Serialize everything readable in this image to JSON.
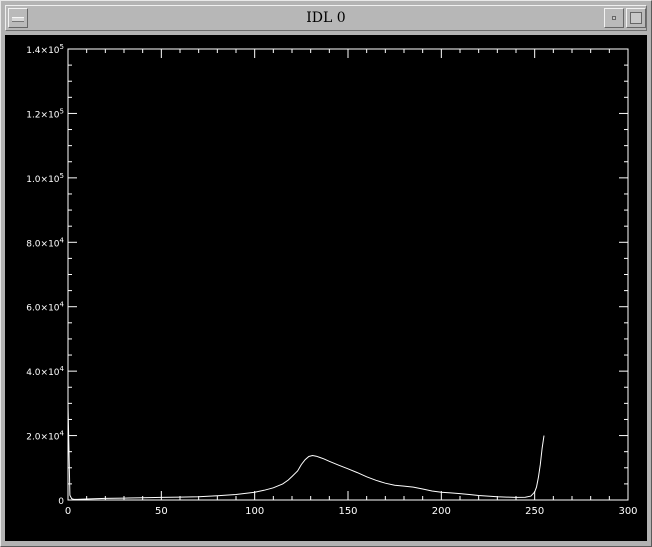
{
  "window": {
    "title": "IDL 0"
  },
  "icons": {
    "menu": "window-menu-icon",
    "minimize": "minimize-icon",
    "maximize": "maximize-icon"
  },
  "colors": {
    "plot_bg": "#000000",
    "ink": "#ffffff"
  },
  "chart_data": {
    "type": "line",
    "title": "",
    "xlabel": "",
    "ylabel": "",
    "xlim": [
      0,
      300
    ],
    "ylim": [
      0,
      140000
    ],
    "grid": false,
    "xticks": [
      0,
      50,
      100,
      150,
      200,
      250,
      300
    ],
    "xtick_labels": [
      "0",
      "50",
      "100",
      "150",
      "200",
      "250",
      "300"
    ],
    "yticks": [
      0,
      20000,
      40000,
      60000,
      80000,
      100000,
      120000,
      140000
    ],
    "ytick_labels": [
      {
        "mant": "0",
        "exp": ""
      },
      {
        "mant": "2.0×10",
        "exp": "4"
      },
      {
        "mant": "4.0×10",
        "exp": "4"
      },
      {
        "mant": "6.0×10",
        "exp": "4"
      },
      {
        "mant": "8.0×10",
        "exp": "4"
      },
      {
        "mant": "1.0×10",
        "exp": "5"
      },
      {
        "mant": "1.2×10",
        "exp": "5"
      },
      {
        "mant": "1.4×10",
        "exp": "5"
      }
    ],
    "series": [
      {
        "x": [
          0,
          1,
          2,
          3,
          5,
          10,
          20,
          30,
          40,
          50,
          60,
          70,
          80,
          90,
          100,
          105,
          110,
          115,
          118,
          120,
          123,
          125,
          127,
          129,
          131,
          133,
          135,
          137,
          140,
          145,
          150,
          155,
          160,
          165,
          170,
          175,
          180,
          185,
          190,
          195,
          200,
          205,
          210,
          215,
          220,
          225,
          230,
          235,
          240,
          245,
          248,
          250,
          251,
          252,
          253,
          254,
          255
        ],
        "y": [
          30000,
          1500,
          400,
          250,
          200,
          300,
          500,
          600,
          700,
          800,
          900,
          1000,
          1300,
          1700,
          2400,
          3000,
          3800,
          5000,
          6200,
          7300,
          9000,
          11000,
          12500,
          13500,
          13800,
          13600,
          13200,
          12800,
          12000,
          10800,
          9700,
          8500,
          7200,
          6100,
          5200,
          4600,
          4300,
          4000,
          3400,
          2800,
          2400,
          2200,
          2000,
          1700,
          1400,
          1200,
          1000,
          900,
          800,
          850,
          1200,
          2500,
          4000,
          7000,
          11000,
          16000,
          20000
        ]
      }
    ]
  }
}
